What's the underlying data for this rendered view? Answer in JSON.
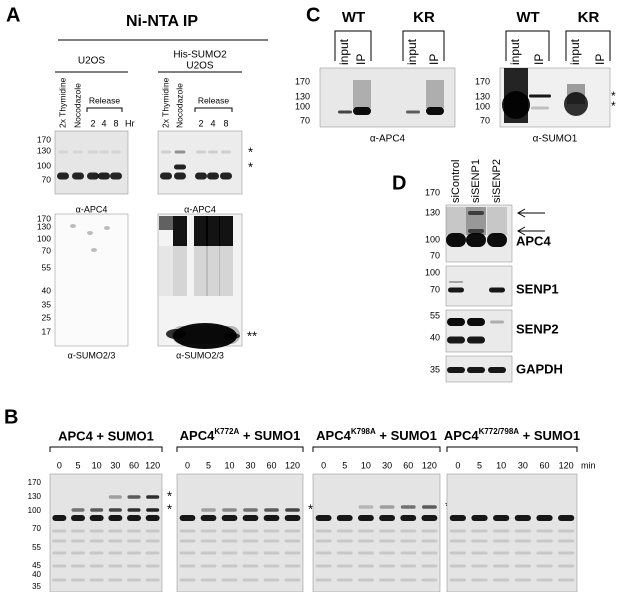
{
  "panel_a": {
    "label": "A",
    "title": "Ni-NTA IP",
    "groups": [
      {
        "name": [
          "U2OS"
        ],
        "lanes": [
          "2x Thymidine",
          "Nocodazole"
        ],
        "release": "Release",
        "times": [
          2,
          4,
          8
        ],
        "unit": "Hr",
        "apc4_markers": [
          170,
          130,
          100,
          70
        ],
        "apc4_antibody": "α-APC4",
        "sumo_markers": [
          170,
          130,
          100,
          70,
          55,
          40,
          35,
          25,
          17
        ],
        "sumo_antibody": "α-SUMO2/3"
      },
      {
        "name": [
          "His-SUMO2",
          "U2OS"
        ],
        "lanes": [
          "2x Thymidine",
          "Nocodazole"
        ],
        "release": "Release",
        "times": [
          2,
          4,
          8
        ],
        "apc4_antibody": "α-APC4",
        "apc4_stars": [
          "*",
          "*"
        ],
        "sumo_antibody": "α-SUMO2/3",
        "sumo_stars": [
          "**"
        ]
      }
    ]
  },
  "panel_b": {
    "label": "B",
    "unit": "min",
    "markers": [
      170,
      130,
      100,
      70,
      55,
      45,
      40,
      35
    ],
    "blots": [
      {
        "title": "APC4 + SUMO1",
        "times": [
          0,
          5,
          10,
          30,
          60,
          120
        ],
        "stars": [
          "*",
          "*"
        ]
      },
      {
        "title_parts": [
          "APC4",
          "K772A",
          " + SUMO1"
        ],
        "times": [
          0,
          5,
          10,
          30,
          60,
          120
        ],
        "stars": [
          "*"
        ]
      },
      {
        "title_parts": [
          "APC4",
          "K798A",
          " + SUMO1"
        ],
        "times": [
          0,
          5,
          10,
          30,
          60,
          120
        ],
        "stars": [
          "*"
        ]
      },
      {
        "title_parts": [
          "APC4",
          "K772/798A",
          " + SUMO1"
        ],
        "times": [
          0,
          5,
          10,
          30,
          60,
          120
        ]
      }
    ]
  },
  "panel_c": {
    "label": "C",
    "blots": [
      {
        "groups": [
          {
            "name": "WT",
            "lanes": [
              "input",
              "IP"
            ]
          },
          {
            "name": "KR",
            "lanes": [
              "input",
              "IP"
            ]
          }
        ],
        "markers": [
          170,
          130,
          100,
          70
        ],
        "antibody": "α-APC4"
      },
      {
        "groups": [
          {
            "name": "WT",
            "lanes": [
              "input",
              "IP"
            ]
          },
          {
            "name": "KR",
            "lanes": [
              "input",
              "IP"
            ]
          }
        ],
        "markers": [
          170,
          130,
          100,
          70
        ],
        "antibody": "α-SUMO1",
        "stars": [
          "*",
          "*"
        ]
      }
    ]
  },
  "panel_d": {
    "label": "D",
    "lanes": [
      "siControl",
      "siSENP1",
      "siSENP2"
    ],
    "blots": [
      {
        "markers": [
          170,
          130,
          100,
          70
        ],
        "name": "APC4"
      },
      {
        "markers": [
          100,
          70
        ],
        "name": "SENP1"
      },
      {
        "markers": [
          55,
          40
        ],
        "name": "SENP2"
      },
      {
        "markers": [
          35
        ],
        "name": "GAPDH"
      }
    ]
  }
}
